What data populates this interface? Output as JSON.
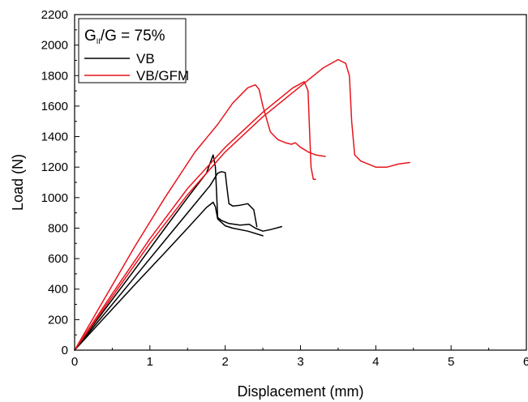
{
  "chart_data": {
    "type": "line",
    "xlabel": "Displacement (mm)",
    "ylabel": "Load (N)",
    "xlim": [
      0,
      6
    ],
    "ylim": [
      0,
      2200
    ],
    "xticks": [
      0,
      1,
      2,
      3,
      4,
      5,
      6
    ],
    "yticks": [
      0,
      200,
      400,
      600,
      800,
      1000,
      1200,
      1400,
      1600,
      1800,
      2000,
      2200
    ],
    "grid": false,
    "legend": {
      "placement": "top-left",
      "title_main": "G",
      "title_sub": "II",
      "title_rest": "/G = 75%",
      "entries": [
        {
          "name": "VB",
          "color": "#000000"
        },
        {
          "name": "VB/GFM",
          "color": "#e8141c"
        }
      ]
    },
    "series": [
      {
        "name": "VB",
        "group": "VB",
        "color": "#000000",
        "x": [
          0,
          0.4,
          0.8,
          1.2,
          1.5,
          1.75,
          1.84,
          1.87,
          1.9,
          2.0,
          2.1,
          2.3,
          2.5
        ],
        "y": [
          0,
          215,
          430,
          640,
          800,
          935,
          970,
          940,
          860,
          815,
          800,
          780,
          750
        ]
      },
      {
        "name": "VB",
        "group": "VB",
        "color": "#000000",
        "x": [
          0,
          0.4,
          0.8,
          1.2,
          1.5,
          1.75,
          1.84,
          1.87,
          1.9,
          1.95,
          2.05,
          2.2,
          2.32,
          2.4,
          2.5,
          2.6,
          2.75
        ],
        "y": [
          0,
          265,
          530,
          800,
          1000,
          1160,
          1280,
          1200,
          870,
          850,
          830,
          820,
          825,
          800,
          780,
          790,
          810
        ]
      },
      {
        "name": "VB",
        "group": "VB",
        "color": "#000000",
        "x": [
          0,
          0.4,
          0.8,
          1.2,
          1.5,
          1.8,
          1.9,
          1.95,
          2.0,
          2.02,
          2.05,
          2.1,
          2.2,
          2.3,
          2.38,
          2.42
        ],
        "y": [
          0,
          240,
          480,
          720,
          900,
          1080,
          1160,
          1170,
          1165,
          1080,
          960,
          945,
          950,
          960,
          920,
          810
        ]
      },
      {
        "name": "VB/GFM",
        "group": "VB/GFM",
        "color": "#e8141c",
        "x": [
          0,
          0.4,
          0.8,
          1.2,
          1.6,
          1.9,
          2.1,
          2.3,
          2.4,
          2.45,
          2.5,
          2.6,
          2.7,
          2.8,
          2.88,
          2.93,
          3.0,
          3.1,
          3.2,
          3.33
        ],
        "y": [
          0,
          340,
          680,
          1000,
          1300,
          1480,
          1620,
          1720,
          1740,
          1710,
          1600,
          1430,
          1380,
          1360,
          1350,
          1360,
          1330,
          1300,
          1280,
          1270
        ]
      },
      {
        "name": "VB/GFM",
        "group": "VB/GFM",
        "color": "#e8141c",
        "x": [
          0,
          0.5,
          1.0,
          1.5,
          2.0,
          2.5,
          2.9,
          3.05,
          3.1,
          3.12,
          3.14,
          3.17,
          3.2
        ],
        "y": [
          0,
          370,
          730,
          1060,
          1330,
          1560,
          1720,
          1760,
          1700,
          1450,
          1200,
          1120,
          1120
        ]
      },
      {
        "name": "VB/GFM",
        "group": "VB/GFM",
        "color": "#e8141c",
        "x": [
          0,
          0.5,
          1.0,
          1.5,
          2.0,
          2.5,
          3.0,
          3.3,
          3.5,
          3.6,
          3.65,
          3.68,
          3.72,
          3.8,
          3.9,
          4.0,
          4.15,
          4.3,
          4.45
        ],
        "y": [
          0,
          350,
          700,
          1020,
          1300,
          1530,
          1730,
          1850,
          1905,
          1880,
          1800,
          1500,
          1280,
          1240,
          1220,
          1200,
          1200,
          1220,
          1230
        ]
      }
    ]
  }
}
